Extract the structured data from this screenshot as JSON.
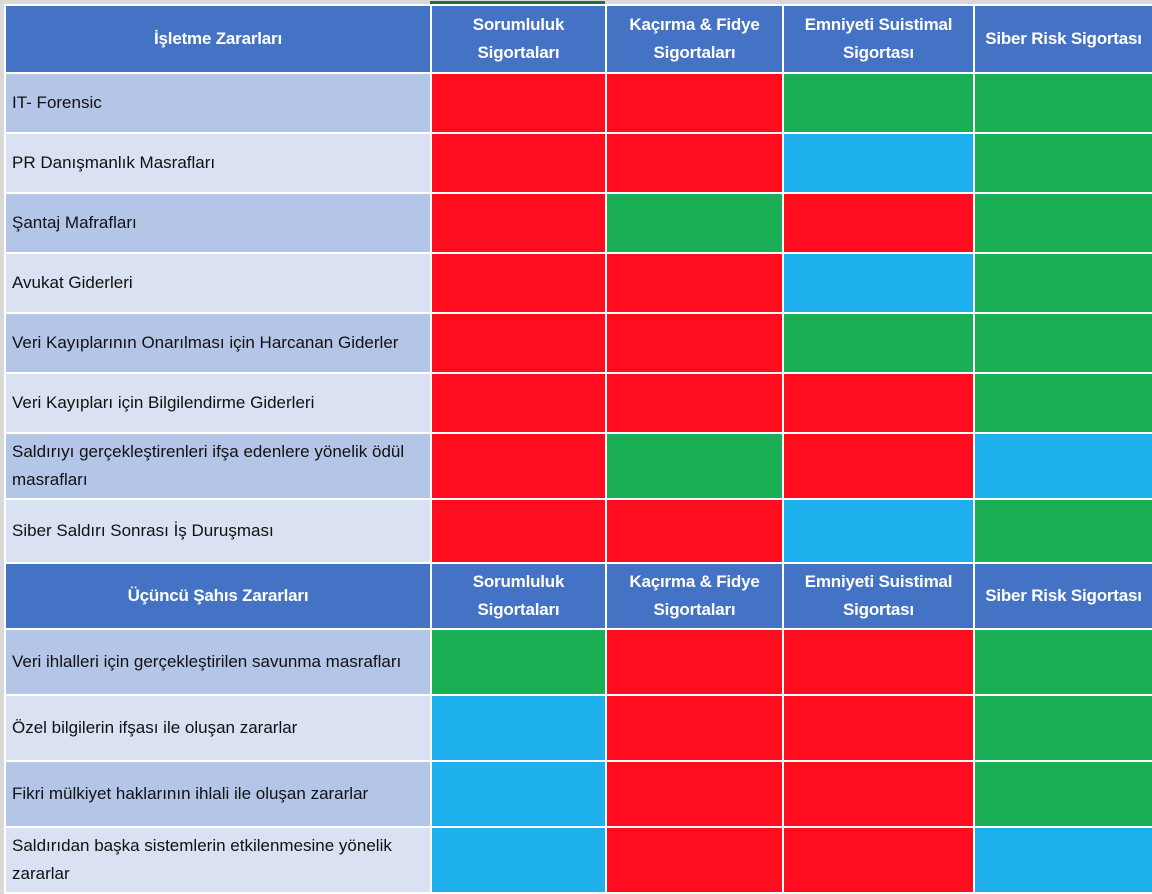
{
  "colors": {
    "header_bg": "#4472c4",
    "row_label_dark": "#b4c6e7",
    "row_label_light": "#d9e1f2",
    "red": "#ff0d1f",
    "green": "#1aaf54",
    "blue": "#1eb0ec"
  },
  "columns": [
    "Sorumluluk Sigortaları",
    "Kaçırma & Fidye Sigortaları",
    "Emniyeti Suistimal Sigortası",
    "Siber Risk Sigortası"
  ],
  "section1": {
    "title": "İşletme Zararları",
    "headers": [
      {
        "line1": "Sorumluluk",
        "line2": "Sigortaları"
      },
      {
        "line1": "Kaçırma & Fidye",
        "line2": "Sigortaları"
      },
      {
        "line1": "Emniyeti Suistimal",
        "line2": "Sigortası"
      },
      {
        "line1": "Siber Risk Sigortası",
        "line2": ""
      }
    ],
    "rows": [
      {
        "label": "IT- Forensic",
        "cells": [
          "red",
          "red",
          "green",
          "green"
        ]
      },
      {
        "label": "PR Danışmanlık Masrafları",
        "cells": [
          "red",
          "red",
          "blue",
          "green"
        ]
      },
      {
        "label": "Şantaj Mafrafları",
        "cells": [
          "red",
          "green",
          "red",
          "green"
        ]
      },
      {
        "label": "Avukat Giderleri",
        "cells": [
          "red",
          "red",
          "blue",
          "green"
        ]
      },
      {
        "label": "Veri Kayıplarının Onarılması için Harcanan Giderler",
        "cells": [
          "red",
          "red",
          "green",
          "green"
        ]
      },
      {
        "label": "Veri Kayıpları için Bilgilendirme Giderleri",
        "cells": [
          "red",
          "red",
          "red",
          "green"
        ]
      },
      {
        "label": "Saldırıyı gerçekleştirenleri ifşa edenlere yönelik ödül masrafları",
        "cells": [
          "red",
          "green",
          "red",
          "blue"
        ]
      },
      {
        "label": "Siber Saldırı Sonrası İş Duruşması",
        "cells": [
          "red",
          "red",
          "blue",
          "green"
        ]
      }
    ]
  },
  "section2": {
    "title": "Üçüncü Şahıs Zararları",
    "headers": [
      {
        "line1": "Sorumluluk",
        "line2": "Sigortaları"
      },
      {
        "line1": "Kaçırma & Fidye",
        "line2": "Sigortaları"
      },
      {
        "line1": "Emniyeti Suistimal",
        "line2": "Sigortası"
      },
      {
        "line1": "Siber Risk Sigortası",
        "line2": ""
      }
    ],
    "rows": [
      {
        "label": "Veri ihlalleri için gerçekleştirilen savunma masrafları",
        "cells": [
          "green",
          "red",
          "red",
          "green"
        ]
      },
      {
        "label": "Özel bilgilerin ifşası ile oluşan zararlar",
        "cells": [
          "blue",
          "red",
          "red",
          "green"
        ]
      },
      {
        "label": "Fikri mülkiyet haklarının ihlali ile oluşan zararlar",
        "cells": [
          "blue",
          "red",
          "red",
          "green"
        ]
      },
      {
        "label": "Saldırıdan başka sistemlerin etkilenmesine yönelik zararlar",
        "cells": [
          "blue",
          "red",
          "red",
          "blue"
        ]
      }
    ]
  }
}
